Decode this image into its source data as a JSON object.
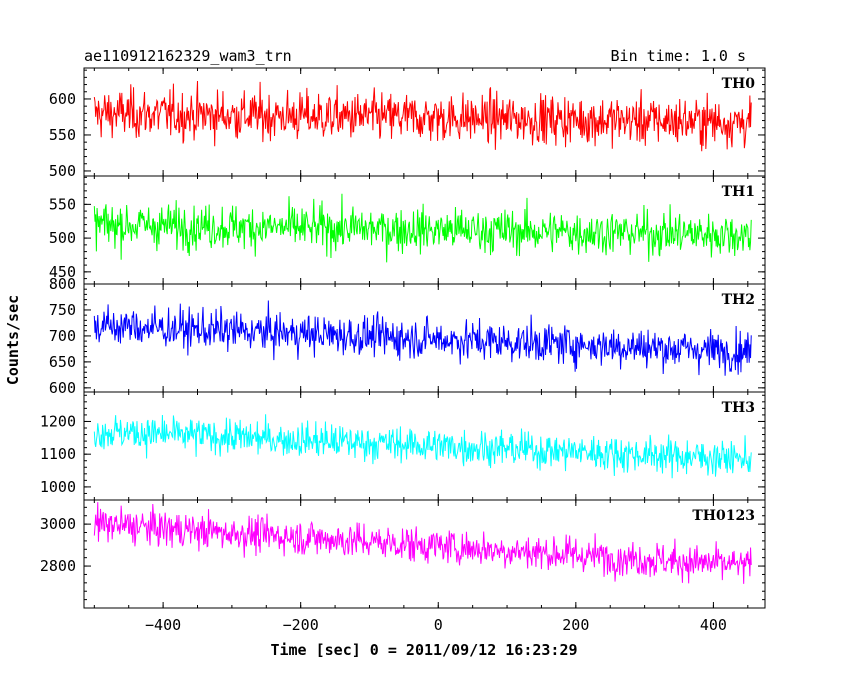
{
  "chart_data": {
    "type": "line",
    "title": "ae110912162329_wam3_trn",
    "bin_time_label": "Bin time: 1.0 s",
    "xlabel": "Time [sec] 0 = 2011/09/12 16:23:29",
    "ylabel": "Counts/sec",
    "xlim": [
      -515,
      475
    ],
    "x_range": [
      -500,
      455
    ],
    "x_bin": 1.0,
    "x_ticks": [
      -400,
      -200,
      0,
      200,
      400
    ],
    "x_tick_labels": [
      "−400",
      "−200",
      "0",
      "200",
      "400"
    ],
    "grid": false,
    "panels": [
      {
        "name": "TH0",
        "color": "#ff0000",
        "ylim": [
          493,
          643
        ],
        "y_ticks": [
          500,
          550,
          600
        ],
        "y_tick_labels": [
          "500",
          "550",
          "600"
        ],
        "mean_start": 580,
        "mean_end": 568,
        "noise_sd": 24
      },
      {
        "name": "TH1",
        "color": "#00ff00",
        "ylim": [
          432,
          592
        ],
        "y_ticks": [
          450,
          500,
          550
        ],
        "y_tick_labels": [
          "450",
          "500",
          "550"
        ],
        "mean_start": 520,
        "mean_end": 505,
        "noise_sd": 23
      },
      {
        "name": "TH2",
        "color": "#0000ff",
        "ylim": [
          592,
          800
        ],
        "y_ticks": [
          600,
          650,
          700,
          750,
          800
        ],
        "y_tick_labels": [
          "600",
          "650",
          "700",
          "750",
          "800"
        ],
        "mean_start": 720,
        "mean_end": 670,
        "noise_sd": 27
      },
      {
        "name": "TH3",
        "color": "#00ffff",
        "ylim": [
          960,
          1290
        ],
        "y_ticks": [
          1000,
          1100,
          1200
        ],
        "y_tick_labels": [
          "1000",
          "1100",
          "1200"
        ],
        "mean_start": 1170,
        "mean_end": 1085,
        "noise_sd": 38
      },
      {
        "name": "TH0123",
        "color": "#ff00ff",
        "ylim": [
          2600,
          3115
        ],
        "y_ticks": [
          2800,
          3000
        ],
        "y_tick_labels": [
          "2800",
          "3000"
        ],
        "mean_start": 3000,
        "mean_end": 2800,
        "noise_sd": 60
      }
    ]
  }
}
